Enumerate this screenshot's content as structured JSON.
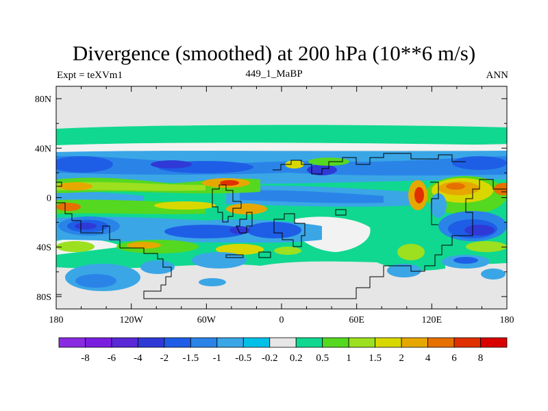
{
  "chart_data": {
    "type": "heatmap",
    "title": "Divergence (smoothed) at 200 hPa (10**6 m/s)",
    "left_string": "Expt = teXVm1",
    "center_string": "449_1_MaBP",
    "right_string": "ANN",
    "x_axis": {
      "range": [
        -180,
        180
      ],
      "ticks": [
        {
          "value": -180,
          "label": "180"
        },
        {
          "value": -120,
          "label": "120W"
        },
        {
          "value": -60,
          "label": "60W"
        },
        {
          "value": 0,
          "label": "0"
        },
        {
          "value": 60,
          "label": "60E"
        },
        {
          "value": 120,
          "label": "120E"
        },
        {
          "value": 180,
          "label": "180"
        }
      ]
    },
    "y_axis": {
      "range": [
        -90,
        90
      ],
      "ticks": [
        {
          "value": 80,
          "label": "80N"
        },
        {
          "value": 40,
          "label": "40N"
        },
        {
          "value": 0,
          "label": "0"
        },
        {
          "value": -40,
          "label": "40S"
        },
        {
          "value": -80,
          "label": "80S"
        }
      ]
    },
    "colorbar": {
      "boundary_labels": [
        "-8",
        "-6",
        "-4",
        "-2",
        "-1.5",
        "-1",
        "-0.5",
        "-0.2",
        "0.2",
        "0.5",
        "1",
        "1.5",
        "2",
        "4",
        "6",
        "8"
      ],
      "colors": [
        "#8a2be2",
        "#7a1fe0",
        "#5a28d6",
        "#2f3ad6",
        "#1e5ee6",
        "#2a84e8",
        "#3aa6e6",
        "#00c0e8",
        "#e6e6e6",
        "#10d890",
        "#55d820",
        "#9ce020",
        "#d8d800",
        "#e6a800",
        "#e67000",
        "#e03000",
        "#d80000"
      ]
    },
    "zero_band_color": "#e6e6e6"
  }
}
